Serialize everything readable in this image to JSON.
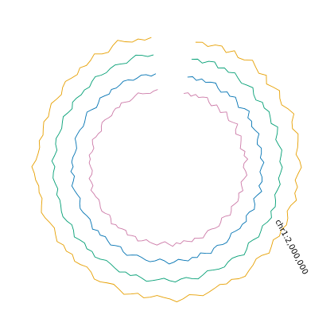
{
  "chart_data": {
    "type": "line",
    "layout": "circular",
    "title": "",
    "gap_degrees": 20,
    "axis_label": "chr1:2,000,000",
    "series": [
      {
        "color": "#E69F00",
        "radius": 165,
        "values": [
          4,
          6,
          3,
          8,
          10,
          5,
          12,
          7,
          9,
          15,
          11,
          8,
          13,
          6,
          10,
          14,
          9,
          7,
          12,
          16,
          10,
          8,
          13,
          11,
          9,
          6,
          10,
          12,
          8,
          5,
          9,
          7,
          11,
          6,
          4,
          8,
          10,
          7,
          9,
          5,
          8,
          11,
          6,
          4,
          7,
          9,
          12,
          10,
          6,
          8,
          5,
          7,
          9,
          11,
          8,
          6,
          10,
          13,
          9,
          7,
          5,
          8,
          10,
          6,
          9,
          12,
          8,
          5,
          7,
          10,
          11,
          6,
          4,
          7,
          9,
          5,
          8,
          6,
          10,
          7,
          4,
          6,
          9,
          11,
          8,
          5,
          7,
          6,
          9,
          10,
          13,
          8,
          6,
          5,
          7,
          4,
          6,
          8,
          5,
          7,
          9,
          6,
          4,
          8,
          10,
          7,
          5,
          9,
          6,
          8,
          12,
          7,
          5,
          10,
          14,
          9,
          6,
          8,
          5,
          7
        ]
      },
      {
        "color": "#009E73",
        "radius": 142,
        "values": [
          5,
          7,
          4,
          9,
          11,
          6,
          10,
          8,
          12,
          9,
          7,
          10,
          13,
          8,
          6,
          11,
          9,
          12,
          10,
          8,
          14,
          11,
          7,
          9,
          12,
          10,
          8,
          11,
          9,
          7,
          10,
          8,
          6,
          9,
          11,
          8,
          12,
          10,
          7,
          9,
          11,
          8,
          6,
          10,
          13,
          9,
          7,
          8,
          11,
          10,
          8,
          6,
          9,
          12,
          10,
          7,
          8,
          11,
          9,
          6,
          8,
          10,
          12,
          9,
          7,
          10,
          8,
          11,
          9,
          7,
          6,
          9,
          11,
          8,
          10,
          7,
          9,
          12,
          8,
          6,
          9,
          11,
          10,
          8,
          7,
          9,
          6,
          8,
          10,
          9,
          7,
          11,
          8,
          6,
          9,
          10,
          8,
          7,
          9,
          11,
          8,
          6,
          10,
          9,
          7,
          8,
          6,
          9,
          11,
          8,
          7,
          9,
          10,
          8,
          6,
          9,
          12,
          10,
          7,
          8
        ]
      },
      {
        "color": "#0072B2",
        "radius": 118,
        "values": [
          6,
          8,
          5,
          9,
          7,
          10,
          12,
          8,
          6,
          11,
          9,
          13,
          10,
          7,
          12,
          15,
          9,
          11,
          8,
          10,
          13,
          9,
          7,
          11,
          10,
          8,
          12,
          9,
          7,
          10,
          11,
          8,
          13,
          9,
          6,
          10,
          12,
          8,
          7,
          11,
          9,
          10,
          8,
          6,
          9,
          11,
          10,
          7,
          8,
          12,
          9,
          6,
          10,
          8,
          11,
          9,
          7,
          10,
          12,
          8,
          6,
          9,
          11,
          10,
          8,
          7,
          9,
          12,
          10,
          6,
          8,
          11,
          9,
          7,
          10,
          8,
          12,
          9,
          7,
          8,
          10,
          11,
          9,
          6,
          8,
          10,
          12,
          9,
          7,
          11,
          8,
          10,
          9,
          7,
          6,
          8,
          11,
          10,
          9,
          7,
          8,
          10,
          12,
          9,
          6,
          8,
          11,
          9,
          7,
          10,
          8,
          9,
          11,
          10,
          7,
          8,
          10,
          9,
          6,
          8
        ]
      },
      {
        "color": "#CC79A7",
        "radius": 96,
        "values": [
          7,
          9,
          6,
          10,
          8,
          11,
          13,
          9,
          7,
          12,
          10,
          8,
          14,
          11,
          9,
          12,
          16,
          10,
          8,
          13,
          11,
          9,
          7,
          12,
          10,
          14,
          9,
          8,
          11,
          13,
          10,
          7,
          9,
          12,
          8,
          10,
          11,
          9,
          7,
          10,
          12,
          8,
          6,
          9,
          11,
          10,
          8,
          7,
          9,
          12,
          10,
          8,
          11,
          9,
          7,
          10,
          8,
          12,
          9,
          6,
          8,
          11,
          10,
          9,
          7,
          10,
          12,
          8,
          9,
          11,
          7,
          8,
          10,
          9,
          12,
          8,
          6,
          9,
          11,
          10,
          8,
          7,
          9,
          10,
          12,
          8,
          9,
          11,
          7,
          6,
          8,
          10,
          9,
          11,
          8,
          7,
          10,
          12,
          9,
          8,
          6,
          9,
          11,
          10,
          8,
          7,
          9,
          10,
          8,
          11,
          9,
          7,
          8,
          10,
          12,
          9,
          8,
          7,
          9,
          10
        ]
      }
    ]
  }
}
